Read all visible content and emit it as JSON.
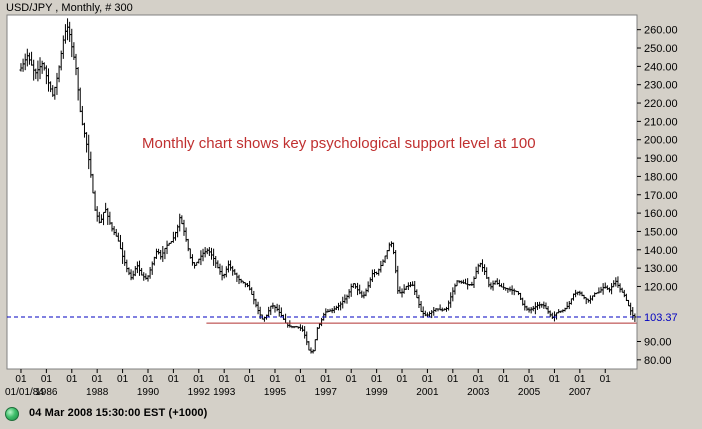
{
  "chart_data": {
    "type": "ohlc",
    "title": "USD/JPY , Monthly, # 300",
    "annotation": "Monthly chart shows key psychological support level at 100",
    "ylim": [
      75,
      268
    ],
    "y_ticks": [
      "80.00",
      "90.00",
      "103.37",
      "120.00",
      "130.00",
      "140.00",
      "150.00",
      "160.00",
      "170.00",
      "180.00",
      "190.00",
      "200.00",
      "210.00",
      "220.00",
      "230.00",
      "240.00",
      "250.00",
      "260.00"
    ],
    "last_price_label": "103.37",
    "x_tick_labels": [
      {
        "year": 1984,
        "text": "01",
        "sub": "01/01/84"
      },
      {
        "year": 1985,
        "text": "01",
        "sub": "1986"
      },
      {
        "year": 1986,
        "text": "01",
        "sub": ""
      },
      {
        "year": 1987,
        "text": "01",
        "sub": "1988"
      },
      {
        "year": 1988,
        "text": "01",
        "sub": ""
      },
      {
        "year": 1989,
        "text": "01",
        "sub": "1990"
      },
      {
        "year": 1990,
        "text": "01",
        "sub": ""
      },
      {
        "year": 1991,
        "text": "01",
        "sub": "1992"
      },
      {
        "year": 1992,
        "text": "01",
        "sub": "1993"
      },
      {
        "year": 1993,
        "text": "01",
        "sub": ""
      },
      {
        "year": 1994,
        "text": "01",
        "sub": "1995"
      },
      {
        "year": 1995,
        "text": "01",
        "sub": ""
      },
      {
        "year": 1996,
        "text": "01",
        "sub": "1997"
      },
      {
        "year": 1997,
        "text": "01",
        "sub": ""
      },
      {
        "year": 1998,
        "text": "01",
        "sub": "1999"
      },
      {
        "year": 1999,
        "text": "01",
        "sub": ""
      },
      {
        "year": 2000,
        "text": "01",
        "sub": "2001"
      },
      {
        "year": 2001,
        "text": "01",
        "sub": ""
      },
      {
        "year": 2002,
        "text": "01",
        "sub": "2003"
      },
      {
        "year": 2003,
        "text": "01",
        "sub": ""
      },
      {
        "year": 2004,
        "text": "01",
        "sub": "2005"
      },
      {
        "year": 2005,
        "text": "01",
        "sub": ""
      },
      {
        "year": 2006,
        "text": "01",
        "sub": "2007"
      },
      {
        "year": 2007,
        "text": "01",
        "sub": ""
      }
    ],
    "support_line": {
      "value": 100,
      "from_year": 1991.3,
      "color": "#b03030"
    },
    "last_price_line": {
      "value": 103.37,
      "color": "#0000c0"
    },
    "anchors": [
      [
        1984.0,
        238
      ],
      [
        1984.3,
        246
      ],
      [
        1984.6,
        236
      ],
      [
        1984.9,
        242
      ],
      [
        1985.1,
        232
      ],
      [
        1985.3,
        224
      ],
      [
        1985.5,
        236
      ],
      [
        1985.75,
        258
      ],
      [
        1985.9,
        262
      ],
      [
        1986.05,
        250
      ],
      [
        1986.2,
        240
      ],
      [
        1986.4,
        212
      ],
      [
        1986.6,
        200
      ],
      [
        1986.8,
        180
      ],
      [
        1986.95,
        162
      ],
      [
        1987.15,
        154
      ],
      [
        1987.35,
        163
      ],
      [
        1987.6,
        152
      ],
      [
        1987.85,
        146
      ],
      [
        1988.05,
        136
      ],
      [
        1988.2,
        130
      ],
      [
        1988.4,
        124
      ],
      [
        1988.6,
        132
      ],
      [
        1988.8,
        126
      ],
      [
        1989.0,
        124
      ],
      [
        1989.2,
        132
      ],
      [
        1989.4,
        140
      ],
      [
        1989.55,
        136
      ],
      [
        1989.75,
        142
      ],
      [
        1990.0,
        145
      ],
      [
        1990.2,
        152
      ],
      [
        1990.3,
        158
      ],
      [
        1990.5,
        148
      ],
      [
        1990.7,
        136
      ],
      [
        1990.85,
        131
      ],
      [
        1991.0,
        134
      ],
      [
        1991.2,
        138
      ],
      [
        1991.4,
        140
      ],
      [
        1991.6,
        136
      ],
      [
        1991.8,
        130
      ],
      [
        1992.0,
        125
      ],
      [
        1992.2,
        132
      ],
      [
        1992.4,
        128
      ],
      [
        1992.6,
        124
      ],
      [
        1992.8,
        122
      ],
      [
        1993.0,
        120
      ],
      [
        1993.2,
        113
      ],
      [
        1993.4,
        106
      ],
      [
        1993.55,
        102
      ],
      [
        1993.7,
        104
      ],
      [
        1993.9,
        110
      ],
      [
        1994.1,
        108
      ],
      [
        1994.3,
        104
      ],
      [
        1994.5,
        99
      ],
      [
        1994.7,
        98
      ],
      [
        1994.9,
        98
      ],
      [
        1995.1,
        97
      ],
      [
        1995.25,
        92
      ],
      [
        1995.4,
        84
      ],
      [
        1995.55,
        85
      ],
      [
        1995.7,
        97
      ],
      [
        1995.85,
        101
      ],
      [
        1996.0,
        106
      ],
      [
        1996.3,
        107
      ],
      [
        1996.6,
        110
      ],
      [
        1996.9,
        115
      ],
      [
        1997.1,
        122
      ],
      [
        1997.3,
        118
      ],
      [
        1997.5,
        114
      ],
      [
        1997.7,
        120
      ],
      [
        1997.9,
        128
      ],
      [
        1998.05,
        127
      ],
      [
        1998.3,
        134
      ],
      [
        1998.5,
        141
      ],
      [
        1998.6,
        145
      ],
      [
        1998.75,
        136
      ],
      [
        1998.85,
        118
      ],
      [
        1999.0,
        116
      ],
      [
        1999.2,
        120
      ],
      [
        1999.45,
        121
      ],
      [
        1999.6,
        115
      ],
      [
        1999.8,
        106
      ],
      [
        2000.0,
        104
      ],
      [
        2000.2,
        106
      ],
      [
        2000.4,
        108
      ],
      [
        2000.6,
        107
      ],
      [
        2000.8,
        108
      ],
      [
        2001.0,
        116
      ],
      [
        2001.2,
        123
      ],
      [
        2001.45,
        122
      ],
      [
        2001.6,
        121
      ],
      [
        2001.8,
        121
      ],
      [
        2002.0,
        130
      ],
      [
        2002.1,
        133
      ],
      [
        2002.3,
        128
      ],
      [
        2002.5,
        119
      ],
      [
        2002.7,
        123
      ],
      [
        2002.9,
        120
      ],
      [
        2003.1,
        119
      ],
      [
        2003.35,
        118
      ],
      [
        2003.6,
        117
      ],
      [
        2003.8,
        110
      ],
      [
        2004.0,
        107
      ],
      [
        2004.2,
        108
      ],
      [
        2004.4,
        110
      ],
      [
        2004.6,
        110
      ],
      [
        2004.8,
        106
      ],
      [
        2004.95,
        103
      ],
      [
        2005.15,
        106
      ],
      [
        2005.4,
        107
      ],
      [
        2005.6,
        110
      ],
      [
        2005.8,
        116
      ],
      [
        2006.0,
        117
      ],
      [
        2006.2,
        114
      ],
      [
        2006.4,
        112
      ],
      [
        2006.6,
        116
      ],
      [
        2006.8,
        117
      ],
      [
        2007.0,
        120
      ],
      [
        2007.2,
        118
      ],
      [
        2007.45,
        123
      ],
      [
        2007.6,
        119
      ],
      [
        2007.8,
        115
      ],
      [
        2008.0,
        108
      ],
      [
        2008.15,
        103.37
      ]
    ]
  },
  "status": {
    "datetime": "04 Mar 2008 15:30:00  EST (+1000)",
    "dot_color": "#3fbf6b"
  }
}
